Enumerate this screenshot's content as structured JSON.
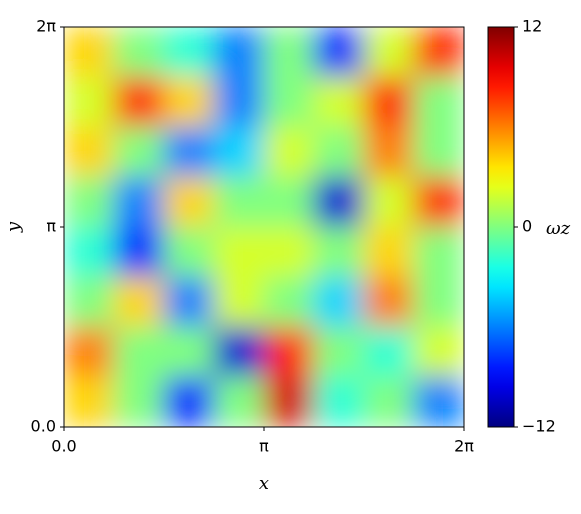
{
  "chart_data": {
    "type": "heatmap",
    "x_label": "x",
    "y_label": "y",
    "colorbar_label": "ωz",
    "colormap": "jet",
    "xlim": [
      0,
      6.28319
    ],
    "ylim": [
      0,
      6.28319
    ],
    "xticks": [
      {
        "value": 0,
        "label": "0.0"
      },
      {
        "value": 3.14159,
        "label": "π"
      },
      {
        "value": 6.28319,
        "label": "2π"
      }
    ],
    "yticks": [
      {
        "value": 0,
        "label": "0.0"
      },
      {
        "value": 3.14159,
        "label": "π"
      },
      {
        "value": 6.28319,
        "label": "2π"
      }
    ],
    "zlim": [
      -12,
      12
    ],
    "zticks": [
      {
        "value": -12,
        "label": "−12"
      },
      0,
      12
    ],
    "z": [
      [
        4,
        0,
        -2,
        -6,
        0,
        -8,
        2,
        8
      ],
      [
        2,
        8,
        4,
        -6,
        0,
        2,
        8,
        0
      ],
      [
        4,
        0,
        -6,
        -4,
        2,
        0,
        6,
        0
      ],
      [
        0,
        -6,
        4,
        0,
        0,
        -10,
        2,
        8
      ],
      [
        -2,
        -8,
        0,
        2,
        2,
        0,
        4,
        0
      ],
      [
        0,
        4,
        -6,
        2,
        0,
        -4,
        6,
        0
      ],
      [
        6,
        0,
        0,
        -10,
        8,
        0,
        -2,
        2
      ],
      [
        4,
        0,
        -8,
        0,
        10,
        -2,
        0,
        -6
      ]
    ]
  }
}
